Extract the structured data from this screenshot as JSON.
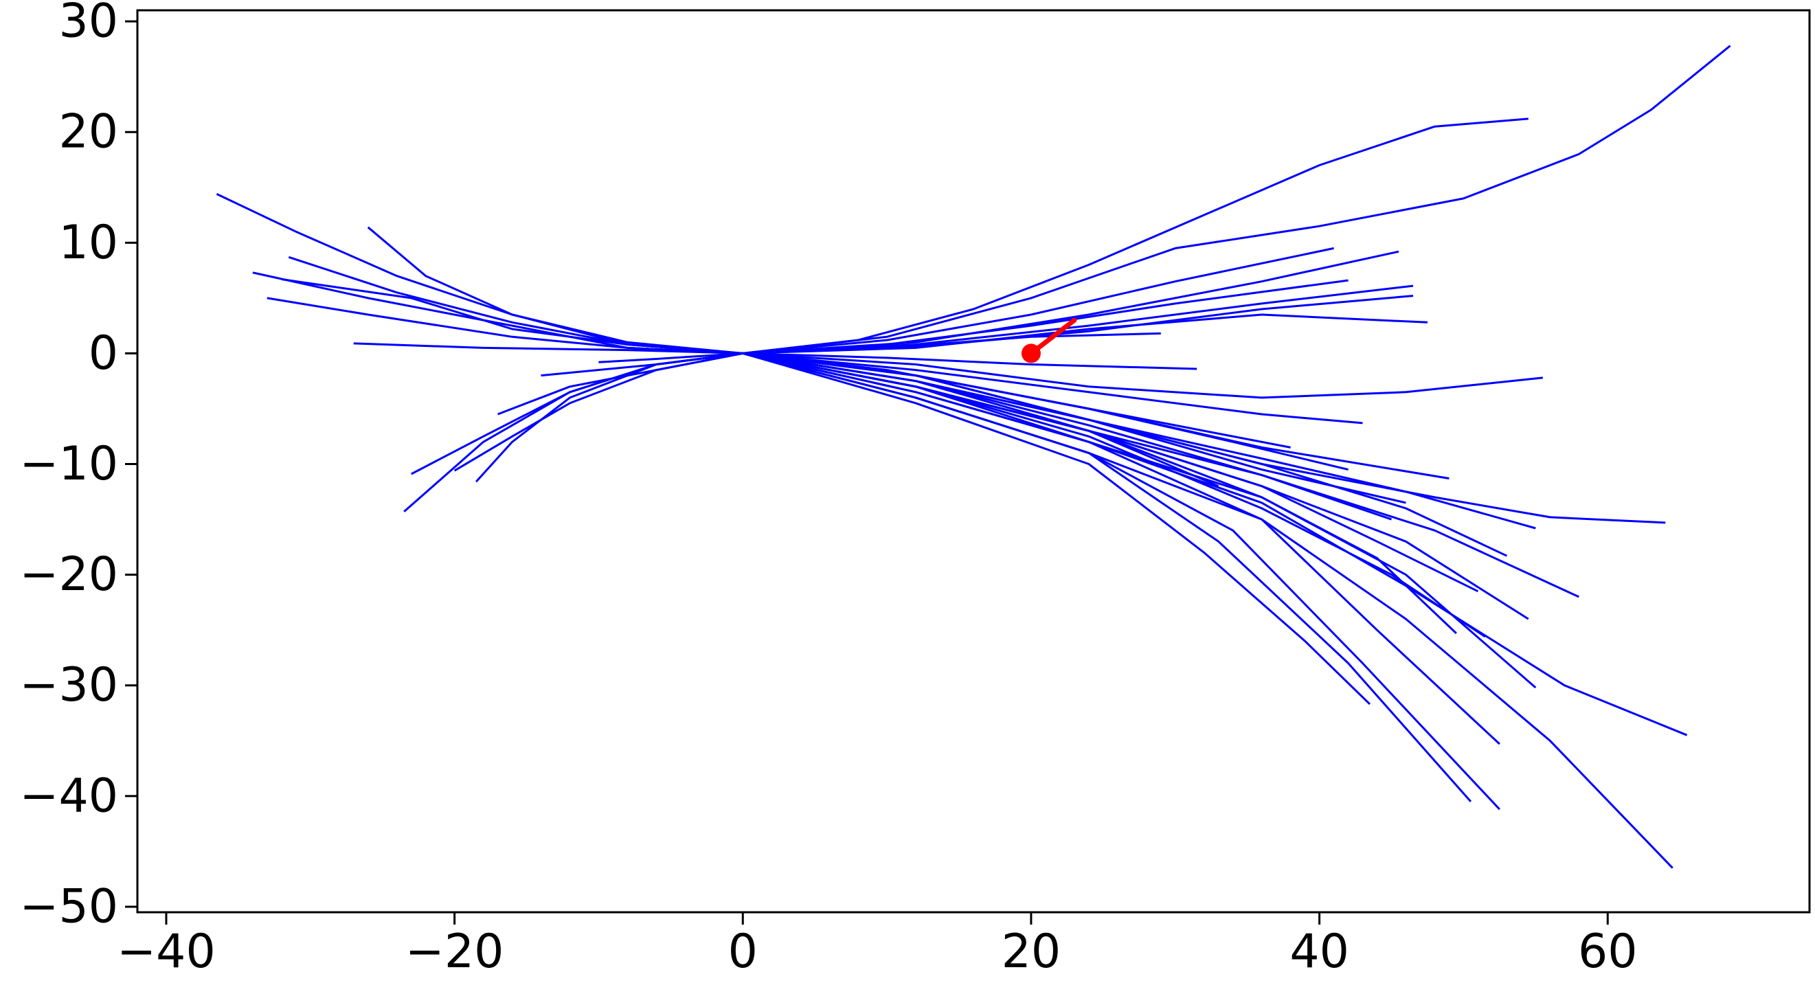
{
  "chart_data": {
    "type": "line",
    "title": "",
    "xlabel": "",
    "ylabel": "",
    "xlim": [
      -42,
      74
    ],
    "ylim": [
      -50.5,
      31
    ],
    "x_ticks": [
      -40,
      -20,
      0,
      20,
      40,
      60
    ],
    "y_ticks": [
      -50,
      -40,
      -30,
      -20,
      -10,
      0,
      10,
      20,
      30
    ],
    "x_tick_labels": [
      "−40",
      "−20",
      "0",
      "20",
      "40",
      "60"
    ],
    "y_tick_labels": [
      "−50",
      "−40",
      "−30",
      "−20",
      "−10",
      "0",
      "10",
      "20",
      "30"
    ],
    "grid": false,
    "legend": "none",
    "colors": {
      "trajectories": "#0000ff",
      "marker": "#ff0000",
      "axes": "#000000"
    },
    "marker": {
      "x": 20,
      "y": 0
    },
    "marker_heading": {
      "x": [
        20,
        23
      ],
      "y": [
        0,
        3
      ]
    },
    "series": [
      {
        "x": [
          0,
          8,
          16,
          24,
          32,
          40,
          48,
          54.5
        ],
        "y": [
          0,
          1.2,
          4,
          8,
          12.5,
          17,
          20.5,
          21.2
        ]
      },
      {
        "x": [
          0,
          10,
          20,
          30,
          40,
          50,
          58,
          63,
          68.5
        ],
        "y": [
          0,
          1.5,
          5,
          9.5,
          11.5,
          14,
          18,
          22,
          27.8
        ]
      },
      {
        "x": [
          0,
          10,
          20,
          30,
          41
        ],
        "y": [
          0,
          1.2,
          3.5,
          6.5,
          9.5
        ]
      },
      {
        "x": [
          0,
          12,
          24,
          36,
          45.5
        ],
        "y": [
          0,
          1,
          3.5,
          6.5,
          9.2
        ]
      },
      {
        "x": [
          0,
          12,
          24,
          36,
          46.5
        ],
        "y": [
          0,
          0.8,
          2.5,
          4.5,
          6.1
        ]
      },
      {
        "x": [
          0,
          12,
          24,
          36,
          46.5
        ],
        "y": [
          0,
          0.6,
          2,
          4,
          5.2
        ]
      },
      {
        "x": [
          0,
          12,
          24,
          36,
          47.5
        ],
        "y": [
          0,
          0.5,
          2.2,
          3.5,
          2.8
        ]
      },
      {
        "x": [
          0,
          10,
          20,
          30,
          42
        ],
        "y": [
          0,
          0.8,
          2.5,
          4.5,
          6.6
        ]
      },
      {
        "x": [
          0,
          10,
          20,
          29
        ],
        "y": [
          0,
          0.5,
          1.5,
          1.8
        ]
      },
      {
        "x": [
          0,
          10,
          20,
          31.5
        ],
        "y": [
          0,
          -0.4,
          -1,
          -1.4
        ]
      },
      {
        "x": [
          0,
          12,
          24,
          36,
          46,
          55.5
        ],
        "y": [
          0,
          -1,
          -3,
          -4,
          -3.5,
          -2.2
        ]
      },
      {
        "x": [
          0,
          12,
          24,
          36,
          43
        ],
        "y": [
          0,
          -1.5,
          -3.5,
          -5.5,
          -6.3
        ]
      },
      {
        "x": [
          0,
          12,
          24,
          36,
          49
        ],
        "y": [
          0,
          -2,
          -5,
          -8.5,
          -11.3
        ]
      },
      {
        "x": [
          0,
          12,
          24,
          36,
          48,
          56,
          64
        ],
        "y": [
          0,
          -2,
          -6,
          -10,
          -13,
          -14.8,
          -15.3
        ]
      },
      {
        "x": [
          0,
          12,
          24,
          36,
          46,
          55
        ],
        "y": [
          0,
          -2.5,
          -6,
          -9.5,
          -12.5,
          -15.8
        ]
      },
      {
        "x": [
          0,
          12,
          24,
          36,
          46,
          53
        ],
        "y": [
          0,
          -2.5,
          -6,
          -10,
          -14,
          -18.3
        ]
      },
      {
        "x": [
          0,
          12,
          24,
          36,
          48,
          58
        ],
        "y": [
          0,
          -3,
          -7,
          -11,
          -16,
          -22
        ]
      },
      {
        "x": [
          0,
          12,
          24,
          36,
          46,
          54.5
        ],
        "y": [
          0,
          -3,
          -7,
          -12,
          -17,
          -24
        ]
      },
      {
        "x": [
          0,
          12,
          24,
          36,
          46,
          55
        ],
        "y": [
          0,
          -3.5,
          -8,
          -13,
          -20,
          -30.2
        ]
      },
      {
        "x": [
          0,
          12,
          24,
          36,
          46,
          57,
          65.5
        ],
        "y": [
          0,
          -3.5,
          -8,
          -13.5,
          -21,
          -30,
          -34.5
        ]
      },
      {
        "x": [
          0,
          12,
          24,
          36,
          46,
          56,
          64.5
        ],
        "y": [
          0,
          -4,
          -9,
          -15,
          -24,
          -35,
          -46.5
        ]
      },
      {
        "x": [
          0,
          12,
          24,
          34,
          43,
          52.5
        ],
        "y": [
          0,
          -4,
          -9,
          -16,
          -28,
          -41.2
        ]
      },
      {
        "x": [
          0,
          12,
          24,
          33,
          42,
          50.5
        ],
        "y": [
          0,
          -4,
          -9,
          -17,
          -28,
          -40.5
        ]
      },
      {
        "x": [
          0,
          12,
          24,
          32,
          39,
          43.5
        ],
        "y": [
          0,
          -4.5,
          -10,
          -18,
          -26,
          -31.7
        ]
      },
      {
        "x": [
          0,
          12,
          24,
          36,
          44,
          52.5
        ],
        "y": [
          0,
          -3,
          -8,
          -15,
          -25,
          -35.3
        ]
      },
      {
        "x": [
          0,
          12,
          24,
          36,
          45,
          51.5
        ],
        "y": [
          0,
          -3,
          -7.5,
          -14,
          -20,
          -25.6
        ]
      },
      {
        "x": [
          0,
          12,
          24,
          36,
          44,
          49.5
        ],
        "y": [
          0,
          -3,
          -7,
          -13,
          -18.5,
          -25.3
        ]
      },
      {
        "x": [
          0,
          12,
          24,
          36,
          44,
          51
        ],
        "y": [
          0,
          -2.5,
          -7,
          -12,
          -17,
          -21.5
        ]
      },
      {
        "x": [
          0,
          12,
          24,
          36,
          46
        ],
        "y": [
          0,
          -2,
          -6,
          -10.5,
          -13.5
        ]
      },
      {
        "x": [
          0,
          12,
          24,
          36,
          45
        ],
        "y": [
          0,
          -2.5,
          -6.5,
          -11,
          -15
        ]
      },
      {
        "x": [
          0,
          12,
          24,
          34,
          42
        ],
        "y": [
          0,
          -2,
          -5,
          -8,
          -10.5
        ]
      },
      {
        "x": [
          0,
          12,
          24,
          33
        ],
        "y": [
          0,
          -3,
          -7,
          -12
        ]
      },
      {
        "x": [
          0,
          10,
          20,
          30,
          38
        ],
        "y": [
          0,
          -1.5,
          -4,
          -6.5,
          -8.5
        ]
      },
      {
        "x": [
          0,
          -8,
          -16,
          -24,
          -31,
          -36.5
        ],
        "y": [
          0,
          0.8,
          3.5,
          7,
          11,
          14.4
        ]
      },
      {
        "x": [
          0,
          -8,
          -16,
          -22,
          -26
        ],
        "y": [
          0,
          1,
          3.5,
          7,
          11.4
        ]
      },
      {
        "x": [
          0,
          -8,
          -16,
          -24,
          -31.5
        ],
        "y": [
          0,
          0.8,
          2.8,
          5.5,
          8.7
        ]
      },
      {
        "x": [
          0,
          -8,
          -16,
          -26,
          -34
        ],
        "y": [
          0,
          0.5,
          2.5,
          5,
          7.3
        ]
      },
      {
        "x": [
          0,
          -8,
          -16,
          -26,
          -33
        ],
        "y": [
          0,
          0.5,
          1.5,
          3.5,
          5
        ]
      },
      {
        "x": [
          0,
          -8,
          -16,
          -23,
          -32
        ],
        "y": [
          0,
          0.8,
          2.2,
          5,
          6.7
        ]
      },
      {
        "x": [
          0,
          -8,
          -18,
          -27
        ],
        "y": [
          0,
          0.3,
          0.5,
          0.9
        ]
      },
      {
        "x": [
          0,
          -6,
          -12,
          -18,
          -23.5
        ],
        "y": [
          0,
          -1,
          -3.5,
          -8,
          -14.3
        ]
      },
      {
        "x": [
          0,
          -6,
          -12,
          -18,
          -23
        ],
        "y": [
          0,
          -1,
          -3.5,
          -7.5,
          -10.9
        ]
      },
      {
        "x": [
          0,
          -6,
          -12,
          -16,
          -18.5
        ],
        "y": [
          0,
          -1,
          -4,
          -8,
          -11.6
        ]
      },
      {
        "x": [
          0,
          -6,
          -12,
          -16,
          -20
        ],
        "y": [
          0,
          -1.5,
          -4.5,
          -7.5,
          -10.6
        ]
      },
      {
        "x": [
          0,
          -6,
          -12,
          -17
        ],
        "y": [
          0,
          -1.5,
          -3,
          -5.5
        ]
      },
      {
        "x": [
          0,
          -6,
          -14
        ],
        "y": [
          0,
          -1,
          -2
        ]
      },
      {
        "x": [
          0,
          -6,
          -10
        ],
        "y": [
          0,
          -0.5,
          -0.8
        ]
      }
    ]
  }
}
